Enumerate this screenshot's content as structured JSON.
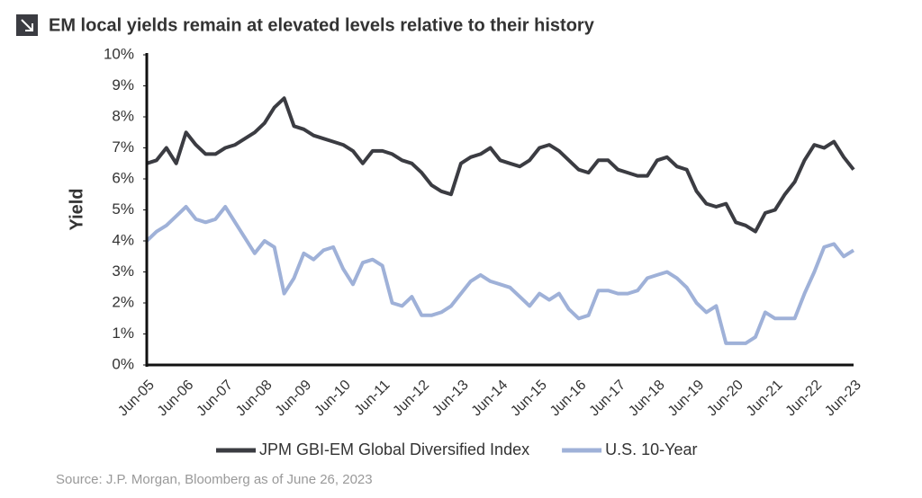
{
  "chart_data": {
    "type": "line",
    "title": "EM local yields remain at elevated levels relative to their history",
    "y_label": "Yield",
    "source": "Source: J.P. Morgan, Bloomberg as of June 26, 2023",
    "categories": [
      "Jun-05",
      null,
      null,
      null,
      "Jun-06",
      null,
      null,
      null,
      "Jun-07",
      null,
      null,
      null,
      "Jun-08",
      null,
      null,
      null,
      "Jun-09",
      null,
      null,
      null,
      "Jun-10",
      null,
      null,
      null,
      "Jun-11",
      null,
      null,
      null,
      "Jun-12",
      null,
      null,
      null,
      "Jun-13",
      null,
      null,
      null,
      "Jun-14",
      null,
      null,
      null,
      "Jun-15",
      null,
      null,
      null,
      "Jun-16",
      null,
      null,
      null,
      "Jun-17",
      null,
      null,
      null,
      "Jun-18",
      null,
      null,
      null,
      "Jun-19",
      null,
      null,
      null,
      "Jun-20",
      null,
      null,
      null,
      "Jun-21",
      null,
      null,
      null,
      "Jun-22",
      null,
      null,
      null,
      "Jun-23"
    ],
    "series": [
      {
        "name": "JPM GBI-EM Global Diversified Index",
        "color": "#3b3c42",
        "values": [
          6.5,
          6.6,
          7.0,
          6.5,
          7.5,
          7.1,
          6.8,
          6.8,
          7.0,
          7.1,
          7.3,
          7.5,
          7.8,
          8.3,
          8.6,
          7.7,
          7.6,
          7.4,
          7.3,
          7.2,
          7.1,
          6.9,
          6.5,
          6.9,
          6.9,
          6.8,
          6.6,
          6.5,
          6.2,
          5.8,
          5.6,
          5.5,
          6.5,
          6.7,
          6.8,
          7.0,
          6.6,
          6.5,
          6.4,
          6.6,
          7.0,
          7.1,
          6.9,
          6.6,
          6.3,
          6.2,
          6.6,
          6.6,
          6.3,
          6.2,
          6.1,
          6.1,
          6.6,
          6.7,
          6.4,
          6.3,
          5.6,
          5.2,
          5.1,
          5.2,
          4.6,
          4.5,
          4.3,
          4.9,
          5.0,
          5.5,
          5.9,
          6.6,
          7.1,
          7.0,
          7.2,
          6.7,
          6.3
        ]
      },
      {
        "name": "U.S. 10-Year",
        "color": "#9fb1d8",
        "values": [
          4.0,
          4.3,
          4.5,
          4.8,
          5.1,
          4.7,
          4.6,
          4.7,
          5.1,
          4.6,
          4.1,
          3.6,
          4.0,
          3.8,
          2.3,
          2.8,
          3.6,
          3.4,
          3.7,
          3.8,
          3.1,
          2.6,
          3.3,
          3.4,
          3.2,
          2.0,
          1.9,
          2.2,
          1.6,
          1.6,
          1.7,
          1.9,
          2.3,
          2.7,
          2.9,
          2.7,
          2.6,
          2.5,
          2.2,
          1.9,
          2.3,
          2.1,
          2.3,
          1.8,
          1.5,
          1.6,
          2.4,
          2.4,
          2.3,
          2.3,
          2.4,
          2.8,
          2.9,
          3.0,
          2.8,
          2.5,
          2.0,
          1.7,
          1.9,
          0.7,
          0.7,
          0.7,
          0.9,
          1.7,
          1.5,
          1.5,
          1.5,
          2.3,
          3.0,
          3.8,
          3.9,
          3.5,
          3.7
        ]
      }
    ],
    "ylim": [
      0,
      10
    ],
    "yticks": [
      {
        "value": 0,
        "label": "0%"
      },
      {
        "value": 1,
        "label": "1%"
      },
      {
        "value": 2,
        "label": "2%"
      },
      {
        "value": 3,
        "label": "3%"
      },
      {
        "value": 4,
        "label": "4%"
      },
      {
        "value": 5,
        "label": "5%"
      },
      {
        "value": 6,
        "label": "6%"
      },
      {
        "value": 7,
        "label": "7%"
      },
      {
        "value": 8,
        "label": "8%"
      },
      {
        "value": 9,
        "label": "9%"
      },
      {
        "value": 10,
        "label": "10%"
      }
    ],
    "grid": false,
    "legend": "bottom"
  }
}
